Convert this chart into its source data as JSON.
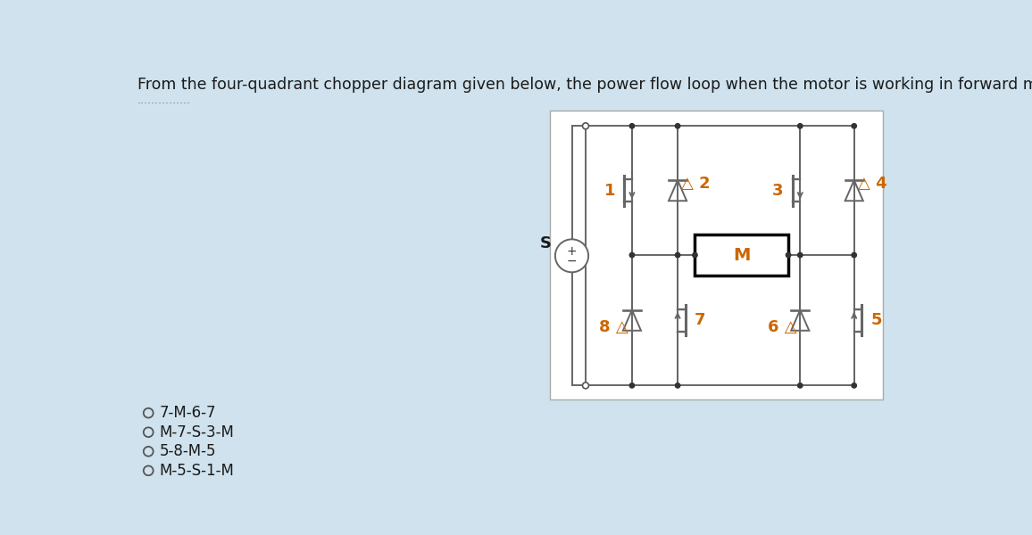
{
  "bg_color": "#cfe2ed",
  "diagram_bg": "#ffffff",
  "title": "From the four-quadrant chopper diagram given below, the power flow loop when the motor is working in forward motoring mode is",
  "dotted_line": "...............",
  "options": [
    "7-M-6-7",
    "M-7-S-3-M",
    "5-8-M-5",
    "M-5-S-1-M"
  ],
  "title_fontsize": 12.5,
  "option_fontsize": 12,
  "line_color": "#666666",
  "M_color": "#cc6600",
  "number_color": "#cc6600",
  "lw": 1.4
}
